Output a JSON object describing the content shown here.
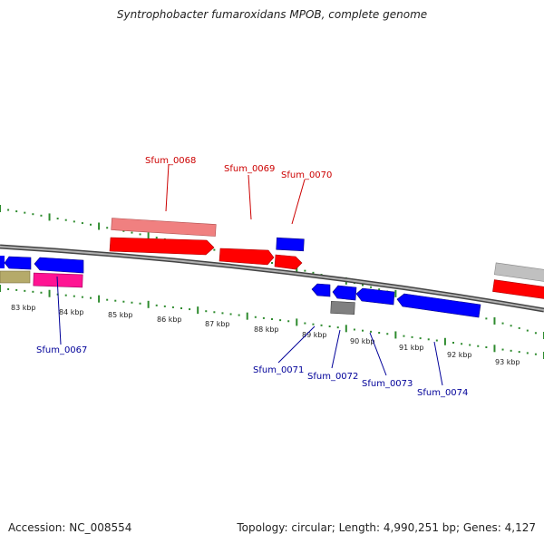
{
  "title": "Syntrophobacter fumaroxidans MPOB, complete genome",
  "footer": {
    "accession": "Accession: NC_008554",
    "info": "Topology: circular; Length: 4,990,251 bp; Genes: 4,127"
  },
  "colors": {
    "tick_green": "#2e8b2e",
    "backbone": "#808080",
    "forward_cds": "#ff0000",
    "forward_light": "#f08080",
    "reverse_cds": "#0000ff",
    "reverse_gray": "#808080",
    "magenta": "#ff1493",
    "olive": "#b5aa6a",
    "label_red": "#cc0000",
    "label_blue": "#000099"
  },
  "kbp_labels": [
    "83 kbp",
    "84 kbp",
    "85 kbp",
    "86 kbp",
    "87 kbp",
    "88 kbp",
    "89 kbp",
    "90 kbp",
    "91 kbp",
    "92 kbp",
    "93 kbp"
  ],
  "gene_labels_top": [
    "Sfum_0068",
    "Sfum_0069",
    "Sfum_0070"
  ],
  "gene_labels_bottom": [
    "Sfum_0067",
    "Sfum_0071",
    "Sfum_0072",
    "Sfum_0073",
    "Sfum_0074"
  ]
}
